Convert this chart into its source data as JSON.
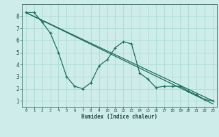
{
  "xlabel": "Humidex (Indice chaleur)",
  "bg_color": "#ceecea",
  "grid_color": "#b0ddd8",
  "line_color": "#1a6b5a",
  "xlim": [
    -0.5,
    23.5
  ],
  "ylim": [
    0.5,
    9.0
  ],
  "xticks": [
    0,
    1,
    2,
    3,
    4,
    5,
    6,
    7,
    8,
    9,
    10,
    11,
    12,
    13,
    14,
    15,
    16,
    17,
    18,
    19,
    20,
    21,
    22,
    23
  ],
  "yticks": [
    1,
    2,
    3,
    4,
    5,
    6,
    7,
    8
  ],
  "series1_x": [
    0,
    1,
    2,
    3,
    4,
    5,
    6,
    7,
    8,
    9,
    10,
    11,
    12,
    13,
    14,
    15,
    16,
    17,
    18,
    19,
    20,
    21,
    22,
    23
  ],
  "series1_y": [
    8.3,
    8.3,
    7.5,
    6.6,
    5.0,
    3.0,
    2.2,
    2.0,
    2.5,
    3.9,
    4.4,
    5.4,
    5.9,
    5.7,
    3.3,
    2.8,
    2.1,
    2.2,
    2.2,
    2.2,
    1.8,
    1.5,
    1.1,
    1.0
  ],
  "trend1_x": [
    0,
    23
  ],
  "trend1_y": [
    8.3,
    1.0
  ],
  "trend2_x": [
    0,
    23
  ],
  "trend2_y": [
    8.3,
    0.75
  ]
}
